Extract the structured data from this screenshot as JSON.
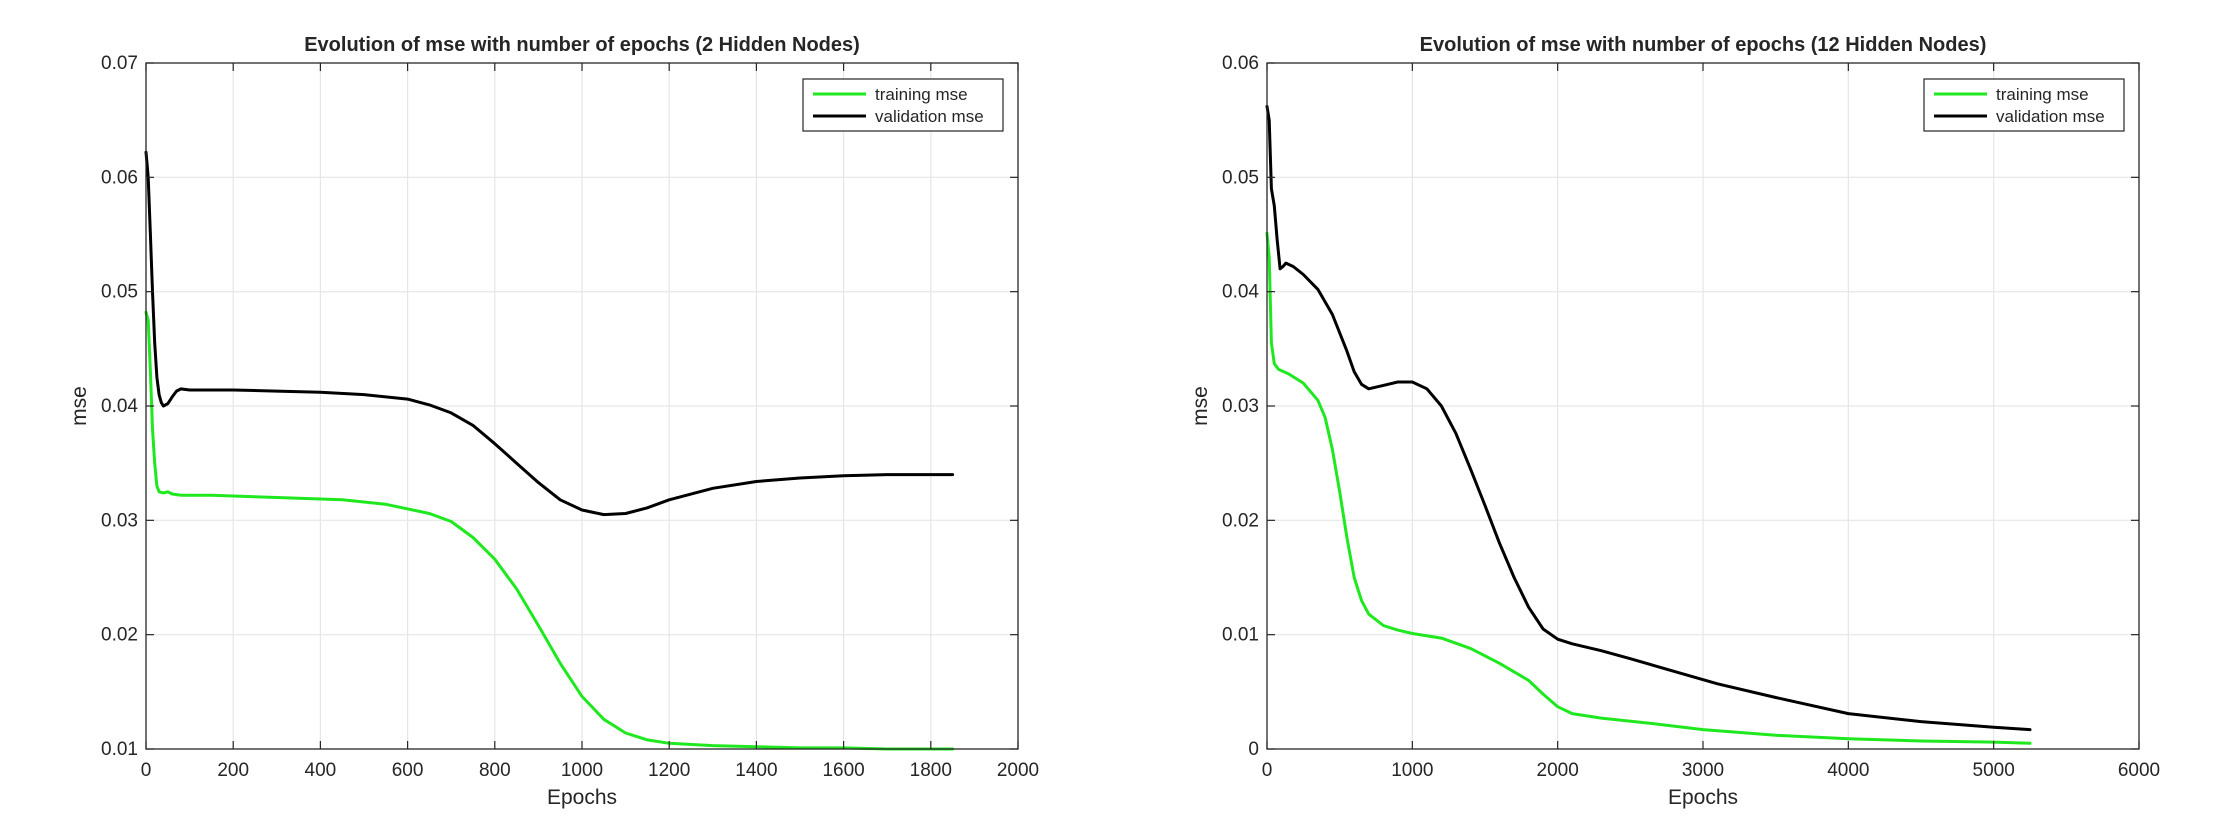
{
  "chart_data": [
    {
      "type": "line",
      "title": "Evolution of mse with number of epochs (2 Hidden Nodes)",
      "xlabel": "Epochs",
      "ylabel": "mse",
      "xlim": [
        0,
        2000
      ],
      "ylim": [
        0.01,
        0.07
      ],
      "xticks": [
        0,
        200,
        400,
        600,
        800,
        1000,
        1200,
        1400,
        1600,
        1800,
        2000
      ],
      "yticks": [
        0.01,
        0.02,
        0.03,
        0.04,
        0.05,
        0.06,
        0.07
      ],
      "xtick_labels": [
        "0",
        "200",
        "400",
        "600",
        "800",
        "1000",
        "1200",
        "1400",
        "1600",
        "1800",
        "2000"
      ],
      "ytick_labels": [
        "0.01",
        "0.02",
        "0.03",
        "0.04",
        "0.05",
        "0.06",
        "0.07"
      ],
      "grid": true,
      "legend_position": "top-right",
      "series": [
        {
          "name": "training mse",
          "color": "#1fe81f",
          "points": [
            [
              0,
              0.0482
            ],
            [
              5,
              0.0475
            ],
            [
              10,
              0.043
            ],
            [
              15,
              0.038
            ],
            [
              20,
              0.035
            ],
            [
              25,
              0.033
            ],
            [
              30,
              0.0325
            ],
            [
              40,
              0.0324
            ],
            [
              50,
              0.0325
            ],
            [
              60,
              0.0323
            ],
            [
              80,
              0.0322
            ],
            [
              150,
              0.0322
            ],
            [
              300,
              0.032
            ],
            [
              450,
              0.0318
            ],
            [
              550,
              0.0314
            ],
            [
              650,
              0.0306
            ],
            [
              700,
              0.0299
            ],
            [
              750,
              0.0285
            ],
            [
              800,
              0.0266
            ],
            [
              850,
              0.024
            ],
            [
              900,
              0.0208
            ],
            [
              950,
              0.0175
            ],
            [
              1000,
              0.0146
            ],
            [
              1050,
              0.0126
            ],
            [
              1100,
              0.0114
            ],
            [
              1150,
              0.0108
            ],
            [
              1200,
              0.0105
            ],
            [
              1300,
              0.0103
            ],
            [
              1400,
              0.0102
            ],
            [
              1500,
              0.0101
            ],
            [
              1600,
              0.0101
            ],
            [
              1700,
              0.01
            ],
            [
              1850,
              0.01
            ]
          ]
        },
        {
          "name": "validation mse",
          "color": "#000000",
          "points": [
            [
              0,
              0.0622
            ],
            [
              5,
              0.06
            ],
            [
              10,
              0.055
            ],
            [
              15,
              0.05
            ],
            [
              20,
              0.0455
            ],
            [
              25,
              0.0425
            ],
            [
              30,
              0.041
            ],
            [
              35,
              0.0403
            ],
            [
              40,
              0.04
            ],
            [
              50,
              0.0402
            ],
            [
              60,
              0.0408
            ],
            [
              70,
              0.0413
            ],
            [
              80,
              0.0415
            ],
            [
              100,
              0.0414
            ],
            [
              200,
              0.0414
            ],
            [
              300,
              0.0413
            ],
            [
              400,
              0.0412
            ],
            [
              500,
              0.041
            ],
            [
              600,
              0.0406
            ],
            [
              650,
              0.0401
            ],
            [
              700,
              0.0394
            ],
            [
              750,
              0.0383
            ],
            [
              800,
              0.0367
            ],
            [
              850,
              0.035
            ],
            [
              900,
              0.0333
            ],
            [
              950,
              0.0318
            ],
            [
              1000,
              0.0309
            ],
            [
              1050,
              0.0305
            ],
            [
              1100,
              0.0306
            ],
            [
              1150,
              0.0311
            ],
            [
              1200,
              0.0318
            ],
            [
              1300,
              0.0328
            ],
            [
              1400,
              0.0334
            ],
            [
              1500,
              0.0337
            ],
            [
              1600,
              0.0339
            ],
            [
              1700,
              0.034
            ],
            [
              1850,
              0.034
            ]
          ]
        }
      ]
    },
    {
      "type": "line",
      "title": "Evolution of mse with number of epochs (12 Hidden Nodes)",
      "xlabel": "Epochs",
      "ylabel": "mse",
      "xlim": [
        0,
        6000
      ],
      "ylim": [
        0,
        0.06
      ],
      "xticks": [
        0,
        1000,
        2000,
        3000,
        4000,
        5000,
        6000
      ],
      "yticks": [
        0,
        0.01,
        0.02,
        0.03,
        0.04,
        0.05,
        0.06
      ],
      "xtick_labels": [
        "0",
        "1000",
        "2000",
        "3000",
        "4000",
        "5000",
        "6000"
      ],
      "ytick_labels": [
        "0",
        "0.01",
        "0.02",
        "0.03",
        "0.04",
        "0.05",
        "0.06"
      ],
      "grid": true,
      "legend_position": "top-right",
      "series": [
        {
          "name": "training mse",
          "color": "#1fe81f",
          "points": [
            [
              0,
              0.0451
            ],
            [
              15,
              0.043
            ],
            [
              30,
              0.0355
            ],
            [
              50,
              0.0337
            ],
            [
              80,
              0.0332
            ],
            [
              150,
              0.0328
            ],
            [
              250,
              0.032
            ],
            [
              350,
              0.0305
            ],
            [
              400,
              0.029
            ],
            [
              450,
              0.0262
            ],
            [
              500,
              0.0225
            ],
            [
              550,
              0.0185
            ],
            [
              600,
              0.015
            ],
            [
              650,
              0.013
            ],
            [
              700,
              0.0118
            ],
            [
              800,
              0.0108
            ],
            [
              900,
              0.0104
            ],
            [
              1000,
              0.0101
            ],
            [
              1200,
              0.0097
            ],
            [
              1400,
              0.0088
            ],
            [
              1600,
              0.0075
            ],
            [
              1800,
              0.006
            ],
            [
              1900,
              0.0048
            ],
            [
              2000,
              0.0037
            ],
            [
              2100,
              0.0031
            ],
            [
              2300,
              0.0027
            ],
            [
              2600,
              0.0023
            ],
            [
              3000,
              0.0017
            ],
            [
              3500,
              0.0012
            ],
            [
              4000,
              0.0009
            ],
            [
              4500,
              0.0007
            ],
            [
              5000,
              0.0006
            ],
            [
              5250,
              0.0005
            ]
          ]
        },
        {
          "name": "validation mse",
          "color": "#000000",
          "points": [
            [
              0,
              0.0562
            ],
            [
              15,
              0.055
            ],
            [
              30,
              0.049
            ],
            [
              50,
              0.0475
            ],
            [
              70,
              0.0445
            ],
            [
              90,
              0.042
            ],
            [
              110,
              0.0422
            ],
            [
              130,
              0.0425
            ],
            [
              180,
              0.0422
            ],
            [
              250,
              0.0415
            ],
            [
              350,
              0.0402
            ],
            [
              450,
              0.038
            ],
            [
              550,
              0.0348
            ],
            [
              600,
              0.033
            ],
            [
              650,
              0.0319
            ],
            [
              700,
              0.0315
            ],
            [
              800,
              0.0318
            ],
            [
              900,
              0.0321
            ],
            [
              1000,
              0.0321
            ],
            [
              1100,
              0.0315
            ],
            [
              1200,
              0.03
            ],
            [
              1300,
              0.0276
            ],
            [
              1400,
              0.0245
            ],
            [
              1500,
              0.0213
            ],
            [
              1600,
              0.018
            ],
            [
              1700,
              0.015
            ],
            [
              1800,
              0.0124
            ],
            [
              1900,
              0.0105
            ],
            [
              2000,
              0.0096
            ],
            [
              2100,
              0.0092
            ],
            [
              2300,
              0.0086
            ],
            [
              2500,
              0.0079
            ],
            [
              2800,
              0.0068
            ],
            [
              3100,
              0.0057
            ],
            [
              3500,
              0.0045
            ],
            [
              4000,
              0.0031
            ],
            [
              4500,
              0.0024
            ],
            [
              5000,
              0.0019
            ],
            [
              5250,
              0.0017
            ]
          ]
        }
      ]
    }
  ]
}
